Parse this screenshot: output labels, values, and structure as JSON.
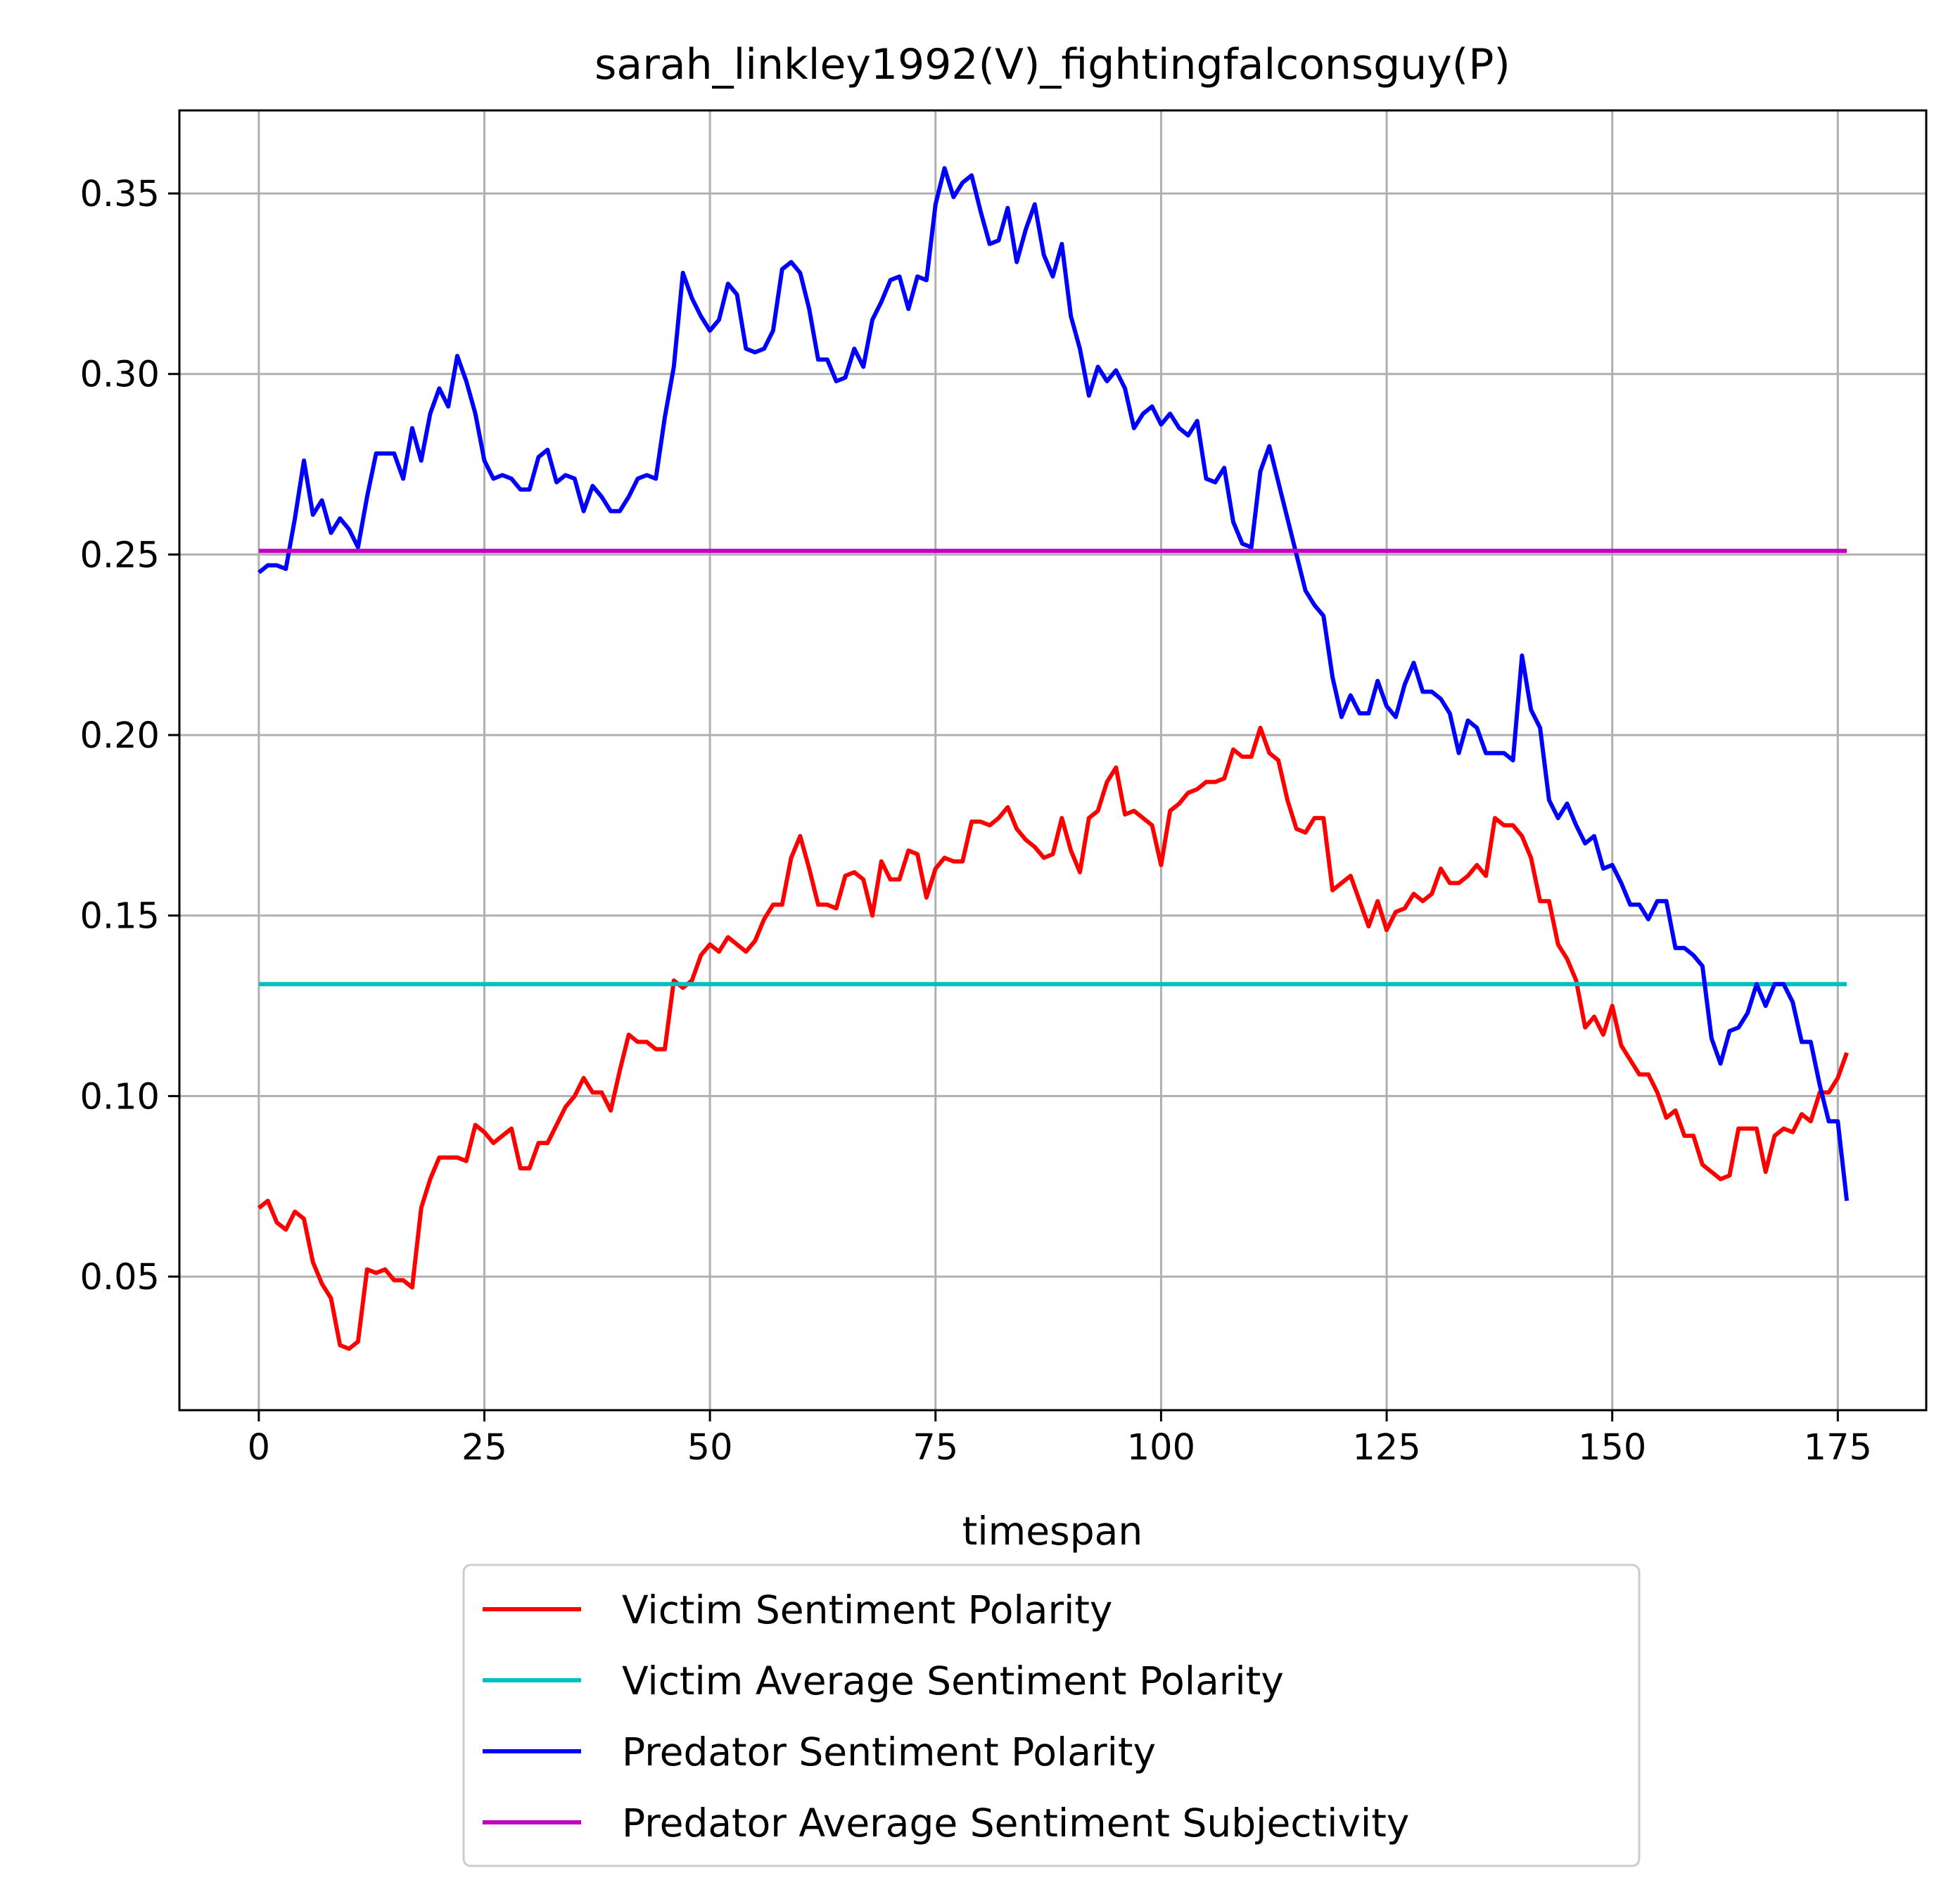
{
  "chart_data": {
    "type": "line",
    "title": "sarah_linkley1992(V)_fightingfalconsguy(P)",
    "xlabel": "timespan",
    "ylabel": "",
    "xlim": [
      -8.8,
      184.8
    ],
    "ylim": [
      0.013,
      0.373
    ],
    "xticks": [
      0,
      25,
      50,
      75,
      100,
      125,
      150,
      175
    ],
    "yticks": [
      0.05,
      0.1,
      0.15,
      0.2,
      0.25,
      0.3,
      0.35
    ],
    "ytick_labels": [
      "0.05",
      "0.10",
      "0.15",
      "0.20",
      "0.25",
      "0.30",
      "0.35"
    ],
    "grid": true,
    "legend_position": "below-center",
    "series": [
      {
        "name": "Victim Sentiment Polarity",
        "color": "#ff0000",
        "x_start": 0,
        "x_step": 1,
        "values": [
          0.069,
          0.071,
          0.065,
          0.063,
          0.068,
          0.066,
          0.054,
          0.048,
          0.044,
          0.031,
          0.03,
          0.032,
          0.052,
          0.051,
          0.052,
          0.049,
          0.049,
          0.047,
          0.069,
          0.077,
          0.083,
          0.083,
          0.083,
          0.082,
          0.092,
          0.09,
          0.087,
          0.089,
          0.091,
          0.08,
          0.08,
          0.087,
          0.087,
          0.092,
          0.097,
          0.1,
          0.105,
          0.101,
          0.101,
          0.096,
          0.107,
          0.117,
          0.115,
          0.115,
          0.113,
          0.113,
          0.132,
          0.13,
          0.132,
          0.139,
          0.142,
          0.14,
          0.144,
          0.142,
          0.14,
          0.143,
          0.149,
          0.153,
          0.153,
          0.166,
          0.172,
          0.163,
          0.153,
          0.153,
          0.152,
          0.161,
          0.162,
          0.16,
          0.15,
          0.165,
          0.16,
          0.16,
          0.168,
          0.167,
          0.155,
          0.163,
          0.166,
          0.165,
          0.165,
          0.176,
          0.176,
          0.175,
          0.177,
          0.18,
          0.174,
          0.171,
          0.169,
          0.166,
          0.167,
          0.177,
          0.168,
          0.162,
          0.177,
          0.179,
          0.187,
          0.191,
          0.178,
          0.179,
          0.177,
          0.175,
          0.164,
          0.179,
          0.181,
          0.184,
          0.185,
          0.187,
          0.187,
          0.188,
          0.196,
          0.194,
          0.194,
          0.202,
          0.195,
          0.193,
          0.182,
          0.174,
          0.173,
          0.177,
          0.177,
          0.157,
          0.159,
          0.161,
          0.154,
          0.147,
          0.154,
          0.146,
          0.151,
          0.152,
          0.156,
          0.154,
          0.156,
          0.163,
          0.159,
          0.159,
          0.161,
          0.164,
          0.161,
          0.177,
          0.175,
          0.175,
          0.172,
          0.166,
          0.154,
          0.154,
          0.142,
          0.138,
          0.132,
          0.119,
          0.122,
          0.117,
          0.125,
          0.114,
          0.11,
          0.106,
          0.106,
          0.101,
          0.094,
          0.096,
          0.089,
          0.089,
          0.081,
          0.079,
          0.077,
          0.078,
          0.091,
          0.091,
          0.091,
          0.079,
          0.089,
          0.091,
          0.09,
          0.095,
          0.093,
          0.101,
          0.101,
          0.105,
          0.112
        ]
      },
      {
        "name": "Victim Average Sentiment Polarity",
        "color": "#00bfbf",
        "x": [
          0,
          176
        ],
        "values": [
          0.131,
          0.131
        ]
      },
      {
        "name": "Predator Sentiment Polarity",
        "color": "#0000ff",
        "x_start": 0,
        "x_step": 1,
        "values": [
          0.245,
          0.247,
          0.247,
          0.246,
          0.26,
          0.276,
          0.261,
          0.265,
          0.256,
          0.26,
          0.257,
          0.252,
          0.266,
          0.278,
          0.278,
          0.278,
          0.271,
          0.285,
          0.276,
          0.289,
          0.296,
          0.291,
          0.305,
          0.298,
          0.289,
          0.276,
          0.271,
          0.272,
          0.271,
          0.268,
          0.268,
          0.277,
          0.279,
          0.27,
          0.272,
          0.271,
          0.262,
          0.269,
          0.266,
          0.262,
          0.262,
          0.266,
          0.271,
          0.272,
          0.271,
          0.288,
          0.302,
          0.328,
          0.321,
          0.316,
          0.312,
          0.315,
          0.325,
          0.322,
          0.307,
          0.306,
          0.307,
          0.312,
          0.329,
          0.331,
          0.328,
          0.318,
          0.304,
          0.304,
          0.298,
          0.299,
          0.307,
          0.302,
          0.315,
          0.32,
          0.326,
          0.327,
          0.318,
          0.327,
          0.326,
          0.347,
          0.357,
          0.349,
          0.353,
          0.355,
          0.345,
          0.336,
          0.337,
          0.346,
          0.331,
          0.34,
          0.347,
          0.333,
          0.327,
          0.336,
          0.316,
          0.307,
          0.294,
          0.302,
          0.298,
          0.301,
          0.296,
          0.285,
          0.289,
          0.291,
          0.286,
          0.289,
          0.285,
          0.283,
          0.287,
          0.271,
          0.27,
          0.274,
          0.259,
          0.253,
          0.252,
          0.273,
          0.28,
          0.27,
          0.26,
          0.25,
          0.24,
          0.236,
          0.233,
          0.216,
          0.205,
          0.211,
          0.206,
          0.206,
          0.215,
          0.208,
          0.205,
          0.214,
          0.22,
          0.212,
          0.212,
          0.21,
          0.206,
          0.195,
          0.204,
          0.202,
          0.195,
          0.195,
          0.195,
          0.193,
          0.222,
          0.207,
          0.202,
          0.182,
          0.177,
          0.181,
          0.175,
          0.17,
          0.172,
          0.163,
          0.164,
          0.159,
          0.153,
          0.153,
          0.149,
          0.154,
          0.154,
          0.141,
          0.141,
          0.139,
          0.136,
          0.116,
          0.109,
          0.118,
          0.119,
          0.123,
          0.131,
          0.125,
          0.131,
          0.131,
          0.126,
          0.115,
          0.115,
          0.103,
          0.093,
          0.093,
          0.071
        ]
      },
      {
        "name": "Predator Average Sentiment Subjectivity",
        "color": "#bf00bf",
        "x": [
          0,
          176
        ],
        "values": [
          0.251,
          0.251
        ]
      }
    ]
  }
}
